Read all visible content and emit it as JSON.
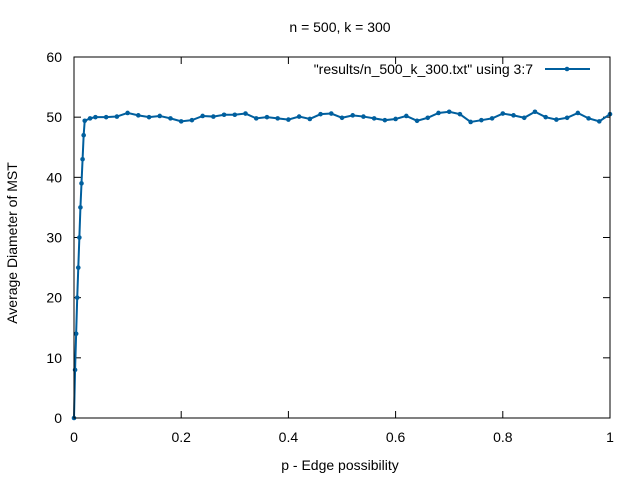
{
  "chart_data": {
    "type": "line",
    "title": "n = 500, k = 300",
    "xlabel": "p - Edge possibility",
    "ylabel": "Average Diameter of MST",
    "xlim": [
      0,
      1
    ],
    "ylim": [
      0,
      60
    ],
    "xticks": [
      0,
      0.2,
      0.4,
      0.6,
      0.8,
      1
    ],
    "xtick_labels": [
      "0",
      "0.2",
      "0.4",
      "0.6",
      "0.8",
      "1"
    ],
    "yticks": [
      0,
      10,
      20,
      30,
      40,
      50,
      60
    ],
    "ytick_labels": [
      "0",
      "10",
      "20",
      "30",
      "40",
      "50",
      "60"
    ],
    "grid": false,
    "legend_position": "top-right",
    "series": [
      {
        "name": "\"results/n_500_k_300.txt\" using 3:7",
        "color": "#005f9e",
        "points": [
          [
            0.0,
            0.0
          ],
          [
            0.002,
            8.0
          ],
          [
            0.004,
            14.0
          ],
          [
            0.006,
            20.0
          ],
          [
            0.008,
            25.0
          ],
          [
            0.01,
            30.0
          ],
          [
            0.012,
            35.0
          ],
          [
            0.014,
            39.0
          ],
          [
            0.016,
            43.0
          ],
          [
            0.018,
            47.0
          ],
          [
            0.02,
            49.4
          ],
          [
            0.03,
            49.8
          ],
          [
            0.04,
            50.0
          ],
          [
            0.06,
            50.0
          ],
          [
            0.08,
            50.1
          ],
          [
            0.1,
            50.7
          ],
          [
            0.12,
            50.3
          ],
          [
            0.14,
            50.0
          ],
          [
            0.16,
            50.2
          ],
          [
            0.18,
            49.8
          ],
          [
            0.2,
            49.3
          ],
          [
            0.22,
            49.5
          ],
          [
            0.24,
            50.2
          ],
          [
            0.26,
            50.1
          ],
          [
            0.28,
            50.4
          ],
          [
            0.3,
            50.4
          ],
          [
            0.32,
            50.6
          ],
          [
            0.34,
            49.8
          ],
          [
            0.36,
            50.0
          ],
          [
            0.38,
            49.8
          ],
          [
            0.4,
            49.6
          ],
          [
            0.42,
            50.1
          ],
          [
            0.44,
            49.7
          ],
          [
            0.46,
            50.5
          ],
          [
            0.48,
            50.6
          ],
          [
            0.5,
            49.9
          ],
          [
            0.52,
            50.3
          ],
          [
            0.54,
            50.1
          ],
          [
            0.56,
            49.8
          ],
          [
            0.58,
            49.5
          ],
          [
            0.6,
            49.7
          ],
          [
            0.62,
            50.2
          ],
          [
            0.64,
            49.4
          ],
          [
            0.66,
            49.9
          ],
          [
            0.68,
            50.7
          ],
          [
            0.7,
            50.9
          ],
          [
            0.72,
            50.5
          ],
          [
            0.74,
            49.2
          ],
          [
            0.76,
            49.5
          ],
          [
            0.78,
            49.8
          ],
          [
            0.8,
            50.6
          ],
          [
            0.82,
            50.3
          ],
          [
            0.84,
            49.9
          ],
          [
            0.86,
            50.9
          ],
          [
            0.88,
            50.0
          ],
          [
            0.9,
            49.6
          ],
          [
            0.92,
            49.9
          ],
          [
            0.94,
            50.7
          ],
          [
            0.96,
            49.8
          ],
          [
            0.98,
            49.3
          ],
          [
            1.0,
            50.5
          ]
        ]
      }
    ]
  }
}
